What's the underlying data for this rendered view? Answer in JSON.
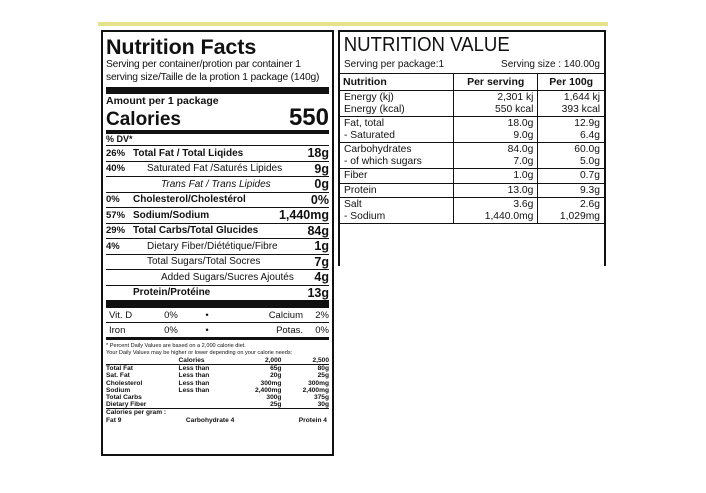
{
  "nutrition_facts": {
    "title": "Nutrition Facts",
    "serving_per_container": "Serving per container/protion par container 1",
    "serving_size": "serving size/Taille de la protion 1 package (140g)",
    "amount_per": "Amount per 1 package",
    "calories_label": "Calories",
    "calories_value": "550",
    "dv_header": "% DV*",
    "rows": [
      {
        "pct": "26%",
        "name": "Total Fat / Total Liqides",
        "value": "18g",
        "style": "bold",
        "indent": 0
      },
      {
        "pct": "40%",
        "name": "Saturated Fat /Saturés Lipides",
        "value": "9g",
        "style": "normal",
        "indent": 1
      },
      {
        "pct": "",
        "name": "Trans Fat / Trans Lipides",
        "value": "0g",
        "style": "italic",
        "indent": 2
      },
      {
        "pct": "0%",
        "name": "Cholesterol/Cholestérol",
        "value": "0%",
        "style": "bold",
        "indent": 0
      },
      {
        "pct": "57%",
        "name": "Sodium/Sodium",
        "value": "1,440mg",
        "style": "bold",
        "indent": 0
      },
      {
        "pct": "29%",
        "name": "Total Carbs/Total Glucides",
        "value": "84g",
        "style": "bold",
        "indent": 0
      },
      {
        "pct": "4%",
        "name": "Dietary Fiber/Diététique/Fibre",
        "value": "1g",
        "style": "normal",
        "indent": 1
      },
      {
        "pct": "",
        "name": "Total Sugars/Total Socres",
        "value": "7g",
        "style": "normal",
        "indent": 1
      },
      {
        "pct": "",
        "name": "Added Sugars/Sucres Ajoutés",
        "value": "4g",
        "style": "normal",
        "indent": 2
      },
      {
        "pct": "",
        "name": "Protein/Protéine",
        "value": "13g",
        "style": "bold",
        "indent": 0
      }
    ],
    "vitamins": [
      {
        "left_name": "Vit. D",
        "left_pct": "0%",
        "bullet": "•",
        "right_name": "Calcium",
        "right_pct": "2%"
      },
      {
        "left_name": "Iron",
        "left_pct": "0%",
        "bullet": "•",
        "right_name": "Potas.",
        "right_pct": "0%"
      }
    ],
    "footnote_1": "* Percent Daily Values are based on a 2,000 calorie diet.",
    "footnote_2": "Your Daily Values may be higher or lower depending on your calorie needs:",
    "footer_table": {
      "header": [
        "",
        "Calories",
        "2,000",
        "2,500"
      ],
      "rows": [
        [
          "Total Fat",
          "Less than",
          "65g",
          "80g"
        ],
        [
          "Sat. Fat",
          "Less than",
          "20g",
          "25g"
        ],
        [
          "Cholesterol",
          "Less than",
          "300mg",
          "300mg"
        ],
        [
          "Sodium",
          "Less than",
          "2,400mg",
          "2,400mg"
        ],
        [
          "Total Carbs",
          "",
          "300g",
          "375g"
        ],
        [
          "Dietary Fiber",
          "",
          "25g",
          "30g"
        ]
      ]
    },
    "calories_per_gram": "Calories per gram :",
    "per_gram": {
      "fat": "Fat 9",
      "carb": "Carbohydrate 4",
      "protein": "Protein 4"
    }
  },
  "nutrition_value": {
    "title": "NUTRITION VALUE",
    "serving_per_package": "Serving per package:1",
    "serving_size": "Serving size : 140.00g",
    "headers": [
      "Nutrition",
      "Per serving",
      "Per 100g"
    ],
    "rows": [
      {
        "names": [
          "Energy (kj)",
          "Energy (kcal)"
        ],
        "serving": [
          "2,301 kj",
          "550 kcal"
        ],
        "per100": [
          "1,644 kj",
          "393 kcal"
        ]
      },
      {
        "names": [
          "Fat, total",
          "- Saturated"
        ],
        "serving": [
          "18.0g",
          "9.0g"
        ],
        "per100": [
          "12.9g",
          "6.4g"
        ]
      },
      {
        "names": [
          "Carbohydrates",
          "- of which sugars"
        ],
        "serving": [
          "84.0g",
          "7.0g"
        ],
        "per100": [
          "60.0g",
          "5.0g"
        ]
      },
      {
        "names": [
          "Fiber"
        ],
        "serving": [
          "1.0g"
        ],
        "per100": [
          "0.7g"
        ]
      },
      {
        "names": [
          "Protein"
        ],
        "serving": [
          "13.0g"
        ],
        "per100": [
          "9.3g"
        ]
      },
      {
        "names": [
          "Salt",
          " - Sodium"
        ],
        "serving": [
          "3.6g",
          "1,440.0mg"
        ],
        "per100": [
          "2.6g",
          "1,029mg"
        ]
      }
    ]
  }
}
